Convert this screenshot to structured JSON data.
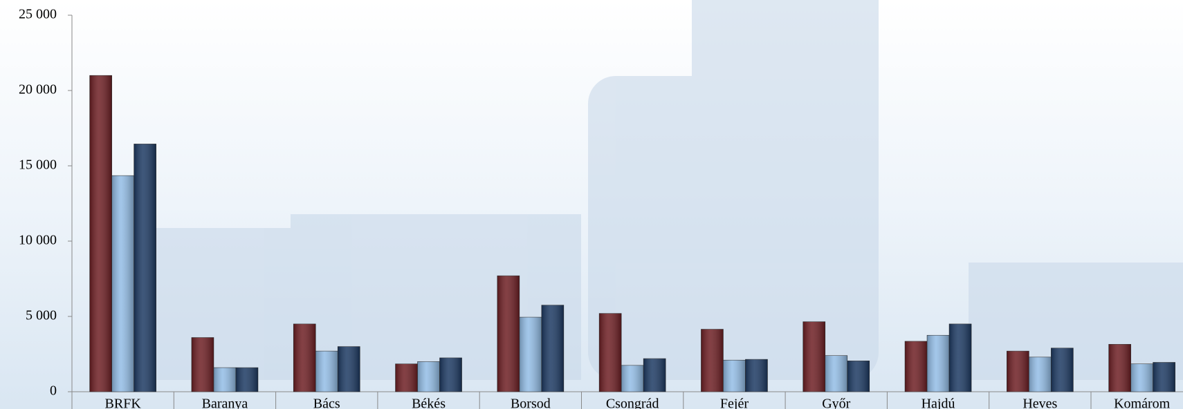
{
  "chart_data": {
    "type": "bar",
    "categories": [
      "BRFK",
      "Baranya",
      "Bács",
      "Békés",
      "Borsod",
      "Csongrád",
      "Fejér",
      "Győr",
      "Hajdú",
      "Heves",
      "Komárom"
    ],
    "series": [
      {
        "color": "#6e1f24",
        "values": [
          21000,
          3600,
          4500,
          1850,
          7700,
          5200,
          4150,
          4650,
          3350,
          2700,
          3150
        ]
      },
      {
        "color": "#93bde6",
        "values": [
          14350,
          1600,
          2700,
          2000,
          4950,
          1750,
          2100,
          2400,
          3750,
          2300,
          1850
        ]
      },
      {
        "color": "#1d3a63",
        "values": [
          16450,
          1600,
          3000,
          2250,
          5750,
          2200,
          2150,
          2050,
          4500,
          2900,
          1950
        ]
      }
    ],
    "ylim": [
      0,
      25000
    ],
    "yticks": [
      {
        "value": 0,
        "label": "0"
      },
      {
        "value": 5000,
        "label": "5 000"
      },
      {
        "value": 10000,
        "label": "10 000"
      },
      {
        "value": 15000,
        "label": "15 000"
      },
      {
        "value": 20000,
        "label": "20 000"
      },
      {
        "value": 25000,
        "label": "25 000"
      }
    ]
  }
}
